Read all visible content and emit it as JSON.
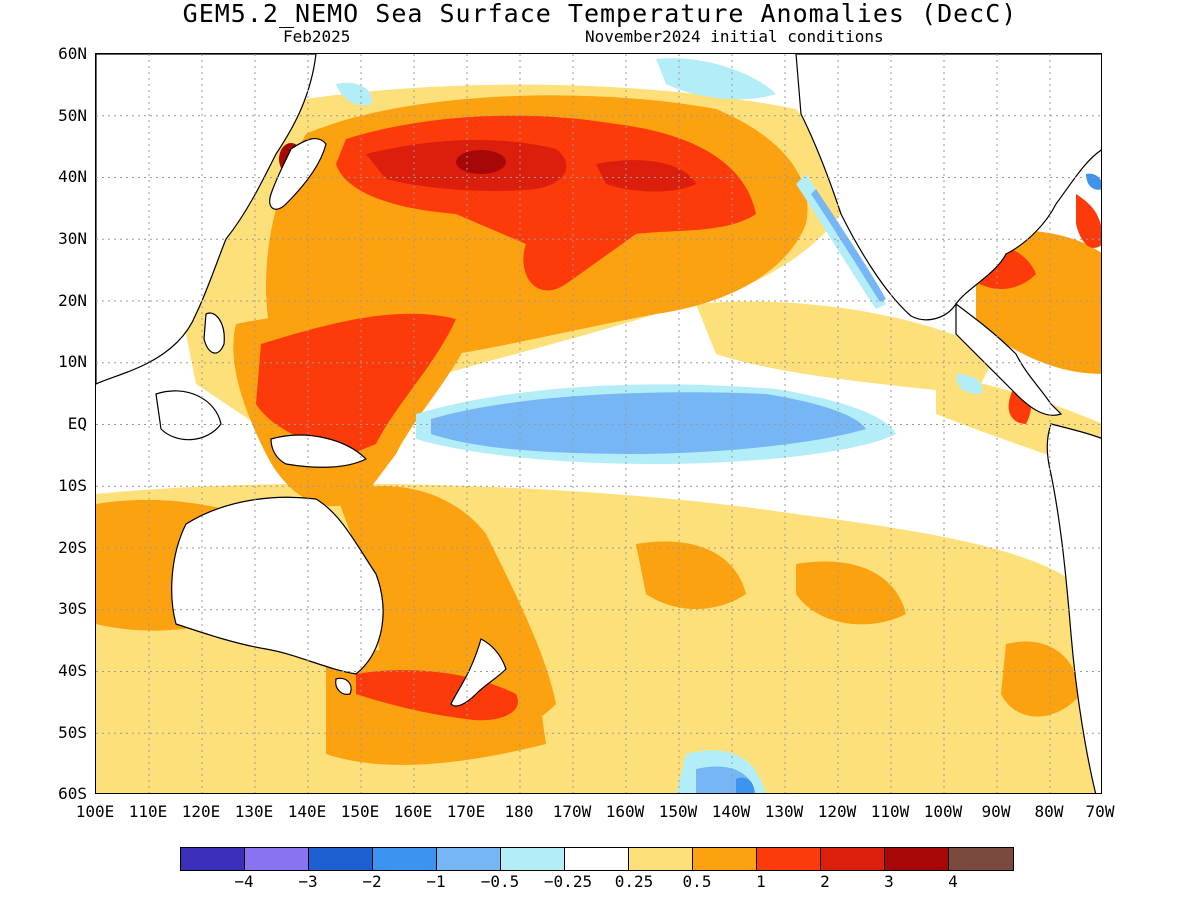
{
  "title": "GEM5.2_NEMO Sea Surface Temperature Anomalies (DecC)",
  "subtitle_left": "Feb2025",
  "subtitle_right": "November2024 initial conditions",
  "lat_labels": [
    "60N",
    "50N",
    "40N",
    "30N",
    "20N",
    "10N",
    "EQ",
    "10S",
    "20S",
    "30S",
    "40S",
    "50S",
    "60S"
  ],
  "lon_labels": [
    "100E",
    "110E",
    "120E",
    "130E",
    "140E",
    "150E",
    "160E",
    "170E",
    "180",
    "170W",
    "160W",
    "150W",
    "140W",
    "130W",
    "120W",
    "110W",
    "100W",
    "90W",
    "80W",
    "70W"
  ],
  "colorbar": {
    "colors": [
      "#3c2fba",
      "#8a73f0",
      "#1e5fd1",
      "#3d93f0",
      "#77b6f5",
      "#b3eef8",
      "#ffffff",
      "#fde07a",
      "#fca10f",
      "#fc3a0a",
      "#dc1e0d",
      "#a70807",
      "#7a4a3e"
    ],
    "labels": [
      "−4",
      "−3",
      "−2",
      "−1",
      "−0.5",
      "−0.25",
      "0.25",
      "0.5",
      "1",
      "2",
      "3",
      "4"
    ]
  },
  "palette": {
    "light_orange": "#fde07a",
    "orange": "#fca10f",
    "red_orange": "#fc3a0a",
    "red": "#dc1e0d",
    "dark_red": "#a70807",
    "light_blue": "#b3eef8",
    "blue": "#77b6f5",
    "mid_blue": "#3d93f0"
  }
}
